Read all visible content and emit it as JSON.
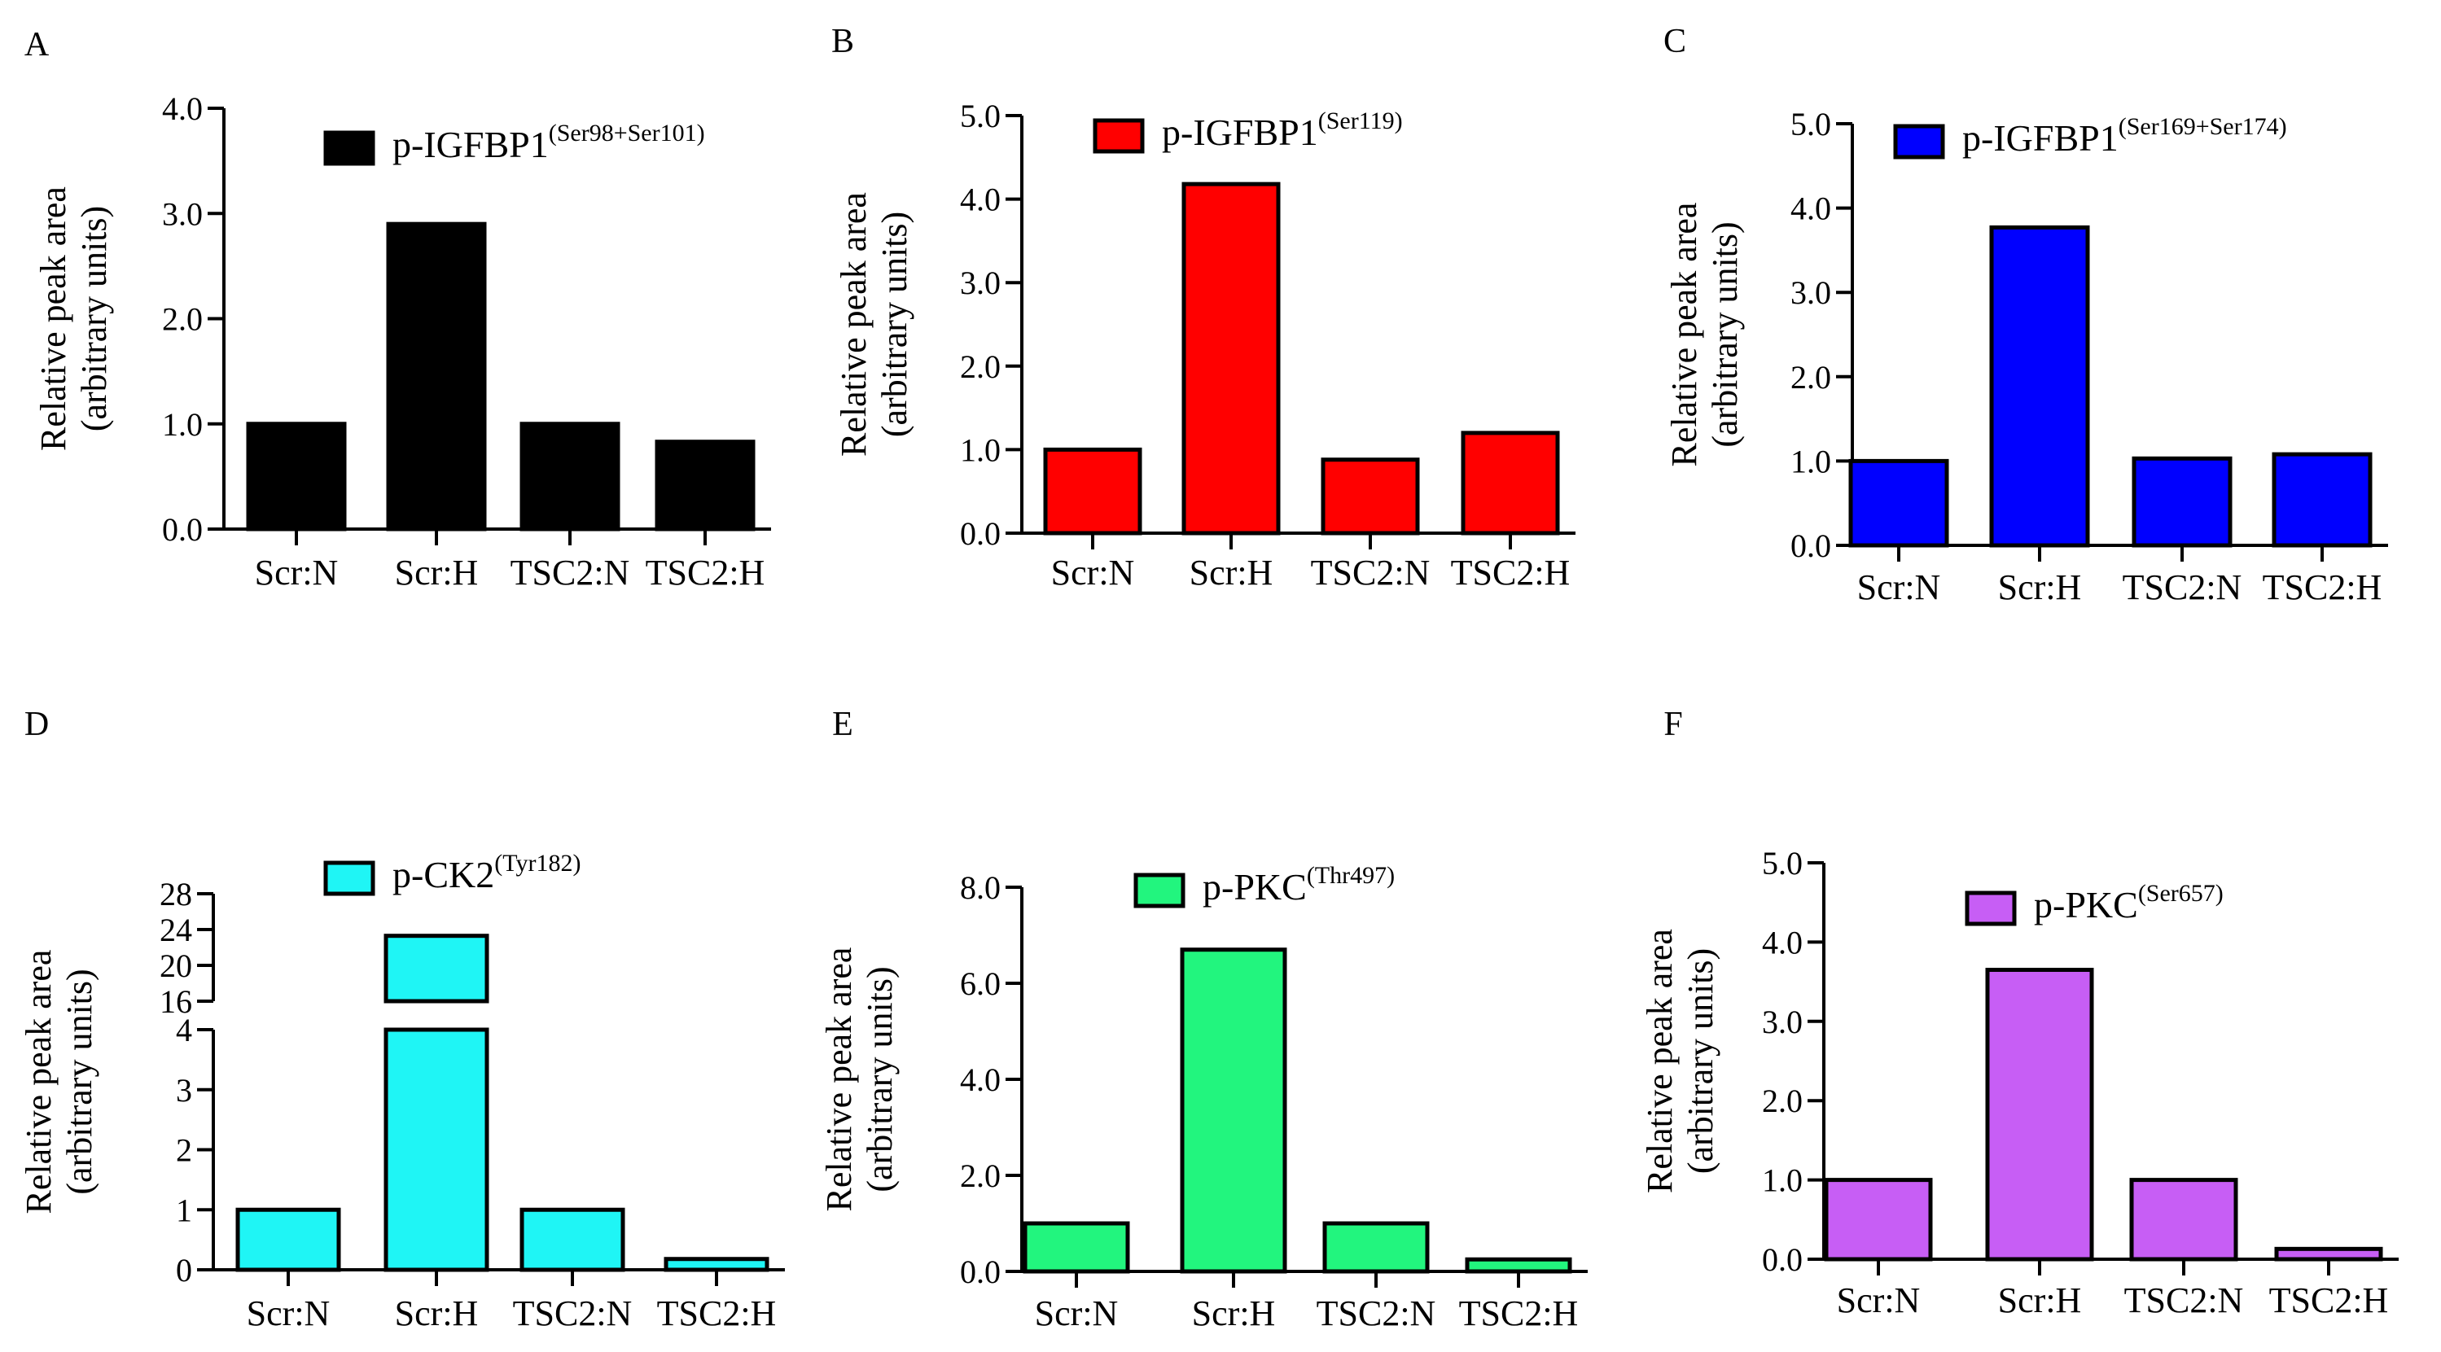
{
  "figure": {
    "charts": [
      {
        "panel": "A",
        "type": "bar",
        "legend": {
          "label": "p-IGFBP1",
          "superscript": "(Ser98+Ser101)"
        },
        "ylabel": [
          "Relative peak area",
          "(arbitrary units)"
        ],
        "categories": [
          "Scr:N",
          "Scr:H",
          "TSC2:N",
          "TSC2:H"
        ],
        "values": [
          1.0,
          2.9,
          1.0,
          0.83
        ],
        "ylim": [
          0,
          4
        ],
        "yticks": [
          0,
          1,
          2,
          3,
          4
        ],
        "ytick_labels": [
          "0.0",
          "1.0",
          "2.0",
          "3.0",
          "4.0"
        ],
        "color": "#000000"
      },
      {
        "panel": "B",
        "type": "bar",
        "legend": {
          "label": "p-IGFBP1",
          "superscript": "(Ser119)"
        },
        "ylabel": [
          "Relative peak area",
          "(arbitrary units)"
        ],
        "categories": [
          "Scr:N",
          "Scr:H",
          "TSC2:N",
          "TSC2:H"
        ],
        "values": [
          1.0,
          4.18,
          0.88,
          1.2
        ],
        "ylim": [
          0,
          5
        ],
        "yticks": [
          0,
          1,
          2,
          3,
          4,
          5
        ],
        "ytick_labels": [
          "0.0",
          "1.0",
          "2.0",
          "3.0",
          "4.0",
          "5.0"
        ],
        "color": "#ff0000"
      },
      {
        "panel": "C",
        "type": "bar",
        "legend": {
          "label": "p-IGFBP1",
          "superscript": "(Ser169+Ser174)"
        },
        "ylabel": [
          "Relative peak area",
          "(arbitrary units)"
        ],
        "categories": [
          "Scr:N",
          "Scr:H",
          "TSC2:N",
          "TSC2:H"
        ],
        "values": [
          1.0,
          3.77,
          1.03,
          1.08
        ],
        "ylim": [
          0,
          5
        ],
        "yticks": [
          0,
          1,
          2,
          3,
          4,
          5
        ],
        "ytick_labels": [
          "0.0",
          "1.0",
          "2.0",
          "3.0",
          "4.0",
          "5.0"
        ],
        "color": "#0000ff"
      },
      {
        "panel": "D",
        "type": "bar",
        "broken_axis": true,
        "legend": {
          "label": "p-CK2",
          "superscript": "(Tyr182)"
        },
        "ylabel": [
          "Relative peak area",
          "(arbitrary units)"
        ],
        "categories": [
          "Scr:N",
          "Scr:H",
          "TSC2:N",
          "TSC2:H"
        ],
        "values": [
          1.0,
          23.3,
          1.0,
          0.18
        ],
        "segments": [
          {
            "range": [
              0,
              4
            ],
            "ticks": [
              0,
              1,
              2,
              3,
              4
            ],
            "tick_labels": [
              "0",
              "1",
              "2",
              "3",
              "4"
            ]
          },
          {
            "range": [
              16,
              28
            ],
            "ticks": [
              16,
              20,
              24,
              28
            ],
            "tick_labels": [
              "16",
              "20",
              "24",
              "28"
            ]
          }
        ],
        "color": "#1ff5f5"
      },
      {
        "panel": "E",
        "type": "bar",
        "legend": {
          "label": "p-PKC",
          "superscript": "(Thr497)"
        },
        "ylabel": [
          "Relative peak area",
          "(arbitrary units)"
        ],
        "categories": [
          "Scr:N",
          "Scr:H",
          "TSC2:N",
          "TSC2:H"
        ],
        "values": [
          1.0,
          6.7,
          1.0,
          0.25
        ],
        "ylim": [
          0,
          8
        ],
        "yticks": [
          0,
          2,
          4,
          6,
          8
        ],
        "ytick_labels": [
          "0.0",
          "2.0",
          "4.0",
          "6.0",
          "8.0"
        ],
        "color": "#22f57e"
      },
      {
        "panel": "F",
        "type": "bar",
        "legend": {
          "label": "p-PKC",
          "superscript": "(Ser657)"
        },
        "ylabel": [
          "Relative peak area",
          "(arbitrary units)"
        ],
        "categories": [
          "Scr:N",
          "Scr:H",
          "TSC2:N",
          "TSC2:H"
        ],
        "values": [
          1.0,
          3.65,
          1.0,
          0.13
        ],
        "ylim": [
          0,
          5
        ],
        "yticks": [
          0,
          1,
          2,
          3,
          4,
          5
        ],
        "ytick_labels": [
          "0.0",
          "1.0",
          "2.0",
          "3.0",
          "4.0",
          "5.0"
        ],
        "color": "#c75ef5"
      }
    ]
  }
}
